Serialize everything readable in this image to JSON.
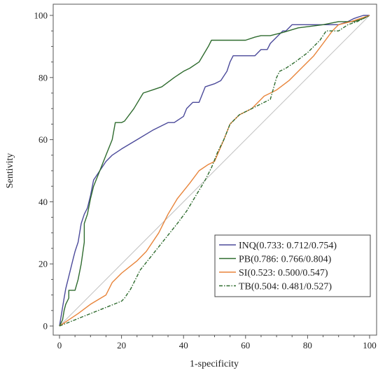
{
  "chart_data": {
    "type": "line",
    "title": "",
    "xlabel": "1-specificity",
    "ylabel": "Sentivity",
    "xlim": [
      0,
      100
    ],
    "ylim": [
      0,
      100
    ],
    "xticks": [
      "0",
      "20",
      "40",
      "60",
      "80",
      "100"
    ],
    "yticks": [
      "0",
      "20",
      "40",
      "60",
      "80",
      "100"
    ],
    "grid": false,
    "legend_position": "bottom-right",
    "reference_line": {
      "from": [
        0,
        0
      ],
      "to": [
        100,
        100
      ],
      "color": "#c0c0c0"
    },
    "series": [
      {
        "name": "INQ(0.733: 0.712/0.754)",
        "color": "#4b4a9a",
        "dash": "solid",
        "points": [
          [
            0,
            0
          ],
          [
            0.5,
            3
          ],
          [
            1,
            6
          ],
          [
            1.5,
            9
          ],
          [
            2,
            12
          ],
          [
            2.5,
            14
          ],
          [
            3,
            16
          ],
          [
            3.5,
            18
          ],
          [
            4,
            20
          ],
          [
            4.5,
            22
          ],
          [
            5,
            24
          ],
          [
            6,
            27
          ],
          [
            6.5,
            30
          ],
          [
            7,
            33
          ],
          [
            8,
            36
          ],
          [
            9,
            38
          ],
          [
            10,
            42
          ],
          [
            11,
            47
          ],
          [
            13,
            50
          ],
          [
            15,
            53
          ],
          [
            17,
            55
          ],
          [
            20,
            57
          ],
          [
            25,
            60
          ],
          [
            30,
            63
          ],
          [
            35,
            65.5
          ],
          [
            37,
            65.5
          ],
          [
            40,
            67.5
          ],
          [
            41,
            70
          ],
          [
            43,
            72
          ],
          [
            45,
            72
          ],
          [
            47,
            77
          ],
          [
            50,
            78
          ],
          [
            52,
            79
          ],
          [
            54,
            82
          ],
          [
            55,
            85
          ],
          [
            56,
            87
          ],
          [
            58,
            87
          ],
          [
            61,
            87
          ],
          [
            63,
            87
          ],
          [
            65,
            89
          ],
          [
            67,
            89
          ],
          [
            68,
            91
          ],
          [
            70,
            93
          ],
          [
            72,
            95
          ],
          [
            73,
            95
          ],
          [
            75,
            97
          ],
          [
            80,
            97
          ],
          [
            85,
            97
          ],
          [
            90,
            97
          ],
          [
            93,
            98
          ],
          [
            95,
            99
          ],
          [
            98,
            100
          ],
          [
            100,
            100
          ]
        ]
      },
      {
        "name": "PB(0.786: 0.766/0.804)",
        "color": "#2e6b2e",
        "dash": "solid",
        "points": [
          [
            0,
            0
          ],
          [
            1,
            2
          ],
          [
            1.5,
            5
          ],
          [
            2,
            7
          ],
          [
            3,
            9
          ],
          [
            3,
            11.5
          ],
          [
            4,
            11.5
          ],
          [
            5,
            11.5
          ],
          [
            6,
            15
          ],
          [
            7,
            20
          ],
          [
            8,
            27
          ],
          [
            8,
            33
          ],
          [
            9,
            36
          ],
          [
            10,
            41
          ],
          [
            11,
            45
          ],
          [
            13,
            50
          ],
          [
            15,
            55
          ],
          [
            17,
            60
          ],
          [
            18,
            65.5
          ],
          [
            20,
            65.5
          ],
          [
            21,
            66
          ],
          [
            24,
            70
          ],
          [
            27,
            75
          ],
          [
            30,
            76
          ],
          [
            33,
            77
          ],
          [
            37,
            80
          ],
          [
            40,
            82
          ],
          [
            42,
            83
          ],
          [
            45,
            85
          ],
          [
            48,
            90
          ],
          [
            49,
            92
          ],
          [
            55,
            92
          ],
          [
            60,
            92
          ],
          [
            63,
            93
          ],
          [
            65,
            93.5
          ],
          [
            68,
            93.5
          ],
          [
            72,
            94.5
          ],
          [
            77,
            96
          ],
          [
            85,
            97
          ],
          [
            90,
            98
          ],
          [
            95,
            98
          ],
          [
            98,
            99
          ],
          [
            100,
            100
          ]
        ]
      },
      {
        "name": "SI(0.523: 0.500/0.547)",
        "color": "#e8843a",
        "dash": "solid",
        "points": [
          [
            0,
            0
          ],
          [
            3,
            2
          ],
          [
            6,
            4
          ],
          [
            10,
            7
          ],
          [
            15,
            10
          ],
          [
            17,
            14
          ],
          [
            20,
            17
          ],
          [
            25,
            21
          ],
          [
            28,
            24
          ],
          [
            32,
            30
          ],
          [
            35,
            36
          ],
          [
            38,
            41
          ],
          [
            42,
            46
          ],
          [
            45,
            50
          ],
          [
            48,
            52
          ],
          [
            50,
            53
          ],
          [
            53,
            60
          ],
          [
            55,
            65
          ],
          [
            58,
            68
          ],
          [
            62,
            70
          ],
          [
            66,
            74
          ],
          [
            70,
            76
          ],
          [
            74,
            79
          ],
          [
            78,
            83
          ],
          [
            82,
            87
          ],
          [
            85,
            91
          ],
          [
            88,
            95
          ],
          [
            90,
            97
          ],
          [
            94,
            98
          ],
          [
            97,
            99
          ],
          [
            100,
            100
          ]
        ]
      },
      {
        "name": "TB(0.504: 0.481/0.527)",
        "color": "#2e6b2e",
        "dash": "dashdot",
        "points": [
          [
            0,
            0
          ],
          [
            5,
            2
          ],
          [
            10,
            4
          ],
          [
            15,
            6
          ],
          [
            20,
            8
          ],
          [
            21,
            9
          ],
          [
            23,
            12
          ],
          [
            26,
            18
          ],
          [
            30,
            23
          ],
          [
            34,
            28
          ],
          [
            38,
            33
          ],
          [
            41,
            37
          ],
          [
            44,
            42
          ],
          [
            47,
            47
          ],
          [
            49,
            51
          ],
          [
            51,
            56
          ],
          [
            53,
            60
          ],
          [
            55,
            65
          ],
          [
            58,
            68
          ],
          [
            62,
            70
          ],
          [
            66,
            72
          ],
          [
            68,
            73
          ],
          [
            70,
            80
          ],
          [
            71,
            82
          ],
          [
            73,
            83
          ],
          [
            76,
            85
          ],
          [
            80,
            88
          ],
          [
            84,
            92
          ],
          [
            86,
            95
          ],
          [
            90,
            95
          ],
          [
            93,
            97
          ],
          [
            96,
            98
          ],
          [
            100,
            100
          ]
        ]
      }
    ]
  }
}
